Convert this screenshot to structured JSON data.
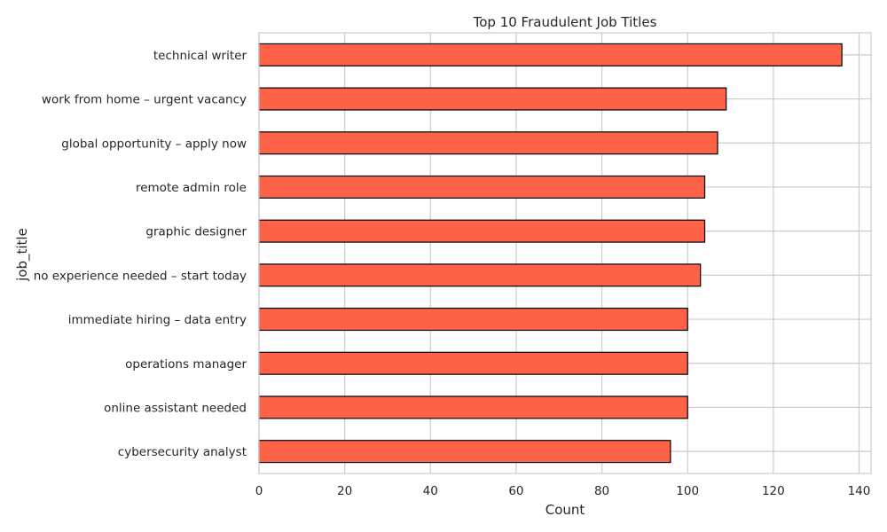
{
  "chart_data": {
    "type": "bar",
    "orientation": "horizontal",
    "title": "Top 10 Fraudulent Job Titles",
    "xlabel": "Count",
    "ylabel": "job_title",
    "categories": [
      "technical writer",
      "work from home – urgent vacancy",
      "global opportunity – apply now",
      "remote admin role",
      "graphic designer",
      "no experience needed – start today",
      "immediate hiring – data entry",
      "operations manager",
      "online assistant needed",
      "cybersecurity analyst"
    ],
    "values": [
      136,
      109,
      107,
      104,
      104,
      103,
      100,
      100,
      100,
      96
    ],
    "xlim": [
      0,
      142.8
    ],
    "xticks": [
      0,
      20,
      40,
      60,
      80,
      100,
      120,
      140
    ],
    "grid": true,
    "bar_color": "#ff6347",
    "bar_edge_color": "#000000"
  }
}
